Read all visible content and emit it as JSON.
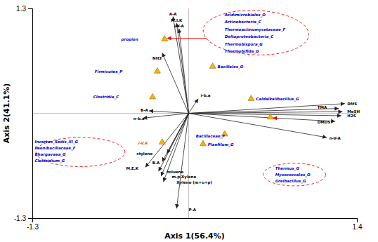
{
  "chart_data": {
    "type": "biplot",
    "xlabel": "Axis 1(56.4%)",
    "ylabel": "Axis 2(41.1%)",
    "xlim": [
      -1.3,
      1.4
    ],
    "ylim": [
      -1.3,
      1.3
    ],
    "xticks": [
      -1.3,
      1.4
    ],
    "yticks": [
      -1.3,
      1.3
    ],
    "origin": [
      0,
      0
    ],
    "marker": "triangle",
    "color": "#FFB300",
    "vectors": [
      {
        "x": -0.13,
        "y": 1.2,
        "label": "A-A",
        "label_x": -0.13,
        "label_y": 1.23,
        "align": "center"
      },
      {
        "x": -0.1,
        "y": 1.12,
        "label": "M.I.K",
        "label_x": -0.1,
        "label_y": 1.15,
        "align": "center"
      },
      {
        "x": -0.08,
        "y": 1.05,
        "label": "i-V-A",
        "label_x": -0.08,
        "label_y": 1.08,
        "align": "center"
      },
      {
        "x": -0.22,
        "y": 0.75,
        "label": "NH3",
        "label_x": -0.3,
        "label_y": 0.68,
        "align": "left"
      },
      {
        "x": 0.08,
        "y": 0.18,
        "label": "i-b.a",
        "label_x": 0.1,
        "label_y": 0.22,
        "align": "left"
      },
      {
        "x": -0.33,
        "y": 0.03,
        "label": "B-A",
        "label_x": -0.4,
        "label_y": 0.04,
        "align": "left"
      },
      {
        "x": -0.38,
        "y": -0.06,
        "label": "n-b.a",
        "label_x": -0.46,
        "label_y": -0.07,
        "align": "left"
      },
      {
        "x": 1.3,
        "y": 0.12,
        "label": "DMS",
        "label_x": 1.32,
        "label_y": 0.12,
        "align": "left"
      },
      {
        "x": 1.25,
        "y": 0.06,
        "label": "TMA",
        "label_x": 1.15,
        "label_y": 0.07,
        "align": "right"
      },
      {
        "x": 1.28,
        "y": 0.02,
        "label": "MeSH",
        "label_x": 1.32,
        "label_y": 0.02,
        "align": "left"
      },
      {
        "x": 1.27,
        "y": -0.03,
        "label": "H2S",
        "label_x": 1.32,
        "label_y": -0.03,
        "align": "left"
      },
      {
        "x": 1.22,
        "y": -0.1,
        "label": "DMDS",
        "label_x": 1.18,
        "label_y": -0.11,
        "align": "right"
      },
      {
        "x": 1.15,
        "y": -0.3,
        "label": "n-V-A",
        "label_x": 1.17,
        "label_y": -0.31,
        "align": "left"
      },
      {
        "x": -0.18,
        "y": -0.5,
        "label": "stylene",
        "label_x": -0.3,
        "label_y": -0.5,
        "align": "right"
      },
      {
        "x": -0.22,
        "y": -0.6,
        "label": "B.A",
        "label_x": -0.24,
        "label_y": -0.61,
        "align": "right"
      },
      {
        "x": -0.36,
        "y": -0.67,
        "label": "M.E.K",
        "label_x": -0.52,
        "label_y": -0.68,
        "align": "left"
      },
      {
        "x": -0.25,
        "y": -0.72,
        "label": "toluene",
        "label_x": -0.18,
        "label_y": -0.73,
        "align": "left"
      },
      {
        "x": -0.23,
        "y": -0.78,
        "label": "m.p-Xylene",
        "label_x": -0.14,
        "label_y": -0.79,
        "align": "left"
      },
      {
        "x": -0.21,
        "y": -0.85,
        "label": "Xylene (m+o+p)",
        "label_x": -0.1,
        "label_y": -0.86,
        "align": "left"
      },
      {
        "x": -0.1,
        "y": -1.18,
        "label": "P-A",
        "label_x": 0.0,
        "label_y": -1.2,
        "align": "left"
      }
    ],
    "points": [
      {
        "x": -0.2,
        "y": 0.92,
        "label": "propion",
        "label_x": -0.42,
        "label_y": 0.92,
        "label_color": "#0000cc",
        "align": "right"
      },
      {
        "x": -0.26,
        "y": 0.52,
        "label": "Firmicutes_P",
        "label_x": -0.55,
        "label_y": 0.52,
        "label_color": "#0000cc",
        "align": "right"
      },
      {
        "x": -0.3,
        "y": 0.2,
        "label": "Clostridia_C",
        "label_x": -0.58,
        "label_y": 0.2,
        "label_color": "#0000cc",
        "align": "right"
      },
      {
        "x": 0.2,
        "y": 0.58,
        "label": "Bacillales_O",
        "label_x": 0.24,
        "label_y": 0.58,
        "label_color": "#0000cc",
        "align": "left"
      },
      {
        "x": 0.52,
        "y": 0.18,
        "label": "Caldalkalibacillus_G",
        "label_x": 0.56,
        "label_y": 0.18,
        "label_color": "#0000cc",
        "align": "left"
      },
      {
        "x": 0.68,
        "y": -0.05,
        "label": null,
        "label_x": 0.68,
        "label_y": -0.05,
        "label_color": "#0000cc",
        "align": "left"
      },
      {
        "x": -0.22,
        "y": -0.36,
        "label": "i-V.A",
        "label_x": -0.34,
        "label_y": -0.37,
        "label_color": "#cc6600",
        "align": "right"
      },
      {
        "x": 0.12,
        "y": -0.38,
        "label": "Planfilum_G",
        "label_x": 0.16,
        "label_y": -0.39,
        "label_color": "#0000cc",
        "align": "left"
      },
      {
        "x": 0.3,
        "y": -0.26,
        "label": "Bacillaceae_F",
        "label_x": 0.06,
        "label_y": -0.28,
        "label_color": "#0000cc",
        "align": "left"
      }
    ],
    "annotations": [
      {
        "x": 0.3,
        "y": 1.22,
        "text": "Acidimicrobiales_O",
        "color": "#0000cc"
      },
      {
        "x": 0.3,
        "y": 1.13,
        "text": "Actinobacteria_C",
        "color": "#0000cc"
      },
      {
        "x": 0.3,
        "y": 1.04,
        "text": "Thermoactinomycetaceae_F",
        "color": "#0000cc"
      },
      {
        "x": 0.3,
        "y": 0.95,
        "text": "Deltaproteobacteria_C",
        "color": "#0000cc"
      },
      {
        "x": 0.3,
        "y": 0.86,
        "text": "Thermobispora_G",
        "color": "#0000cc"
      },
      {
        "x": 0.3,
        "y": 0.77,
        "text": "Thermobifida_G",
        "color": "#0000cc"
      },
      {
        "x": -1.28,
        "y": -0.35,
        "text": "Incertae_Sedis_XI_G",
        "color": "#0000cc"
      },
      {
        "x": -1.28,
        "y": -0.43,
        "text": "Paenibacillaceae_F",
        "color": "#0000cc"
      },
      {
        "x": -1.28,
        "y": -0.51,
        "text": "Bhargavaea_G",
        "color": "#0000cc"
      },
      {
        "x": -1.28,
        "y": -0.59,
        "text": "Clostridium_G",
        "color": "#0000cc"
      },
      {
        "x": 0.72,
        "y": -0.68,
        "text": "Thermus_G",
        "color": "#0000cc"
      },
      {
        "x": 0.72,
        "y": -0.76,
        "text": "Myxococcales_O",
        "color": "#0000cc"
      },
      {
        "x": 0.72,
        "y": -0.84,
        "text": "Ureibacillus_G",
        "color": "#0000cc"
      }
    ],
    "ellipses": [
      {
        "cx": 0.56,
        "cy": 1.0,
        "width": 0.88,
        "height": 0.55,
        "angle": -5,
        "color": "red"
      },
      {
        "cx": -0.9,
        "cy": -0.48,
        "width": 0.74,
        "height": 0.36,
        "angle": 0,
        "color": "red"
      },
      {
        "cx": 0.88,
        "cy": -0.76,
        "width": 0.52,
        "height": 0.28,
        "angle": 0,
        "color": "red"
      }
    ],
    "arrows": [
      {
        "x1": 0.15,
        "y1": 0.93,
        "x2": -0.18,
        "y2": 0.93,
        "color": "red"
      },
      {
        "x1": 0.74,
        "y1": -0.06,
        "x2": 0.7,
        "y2": -0.06,
        "color": "red"
      }
    ]
  }
}
